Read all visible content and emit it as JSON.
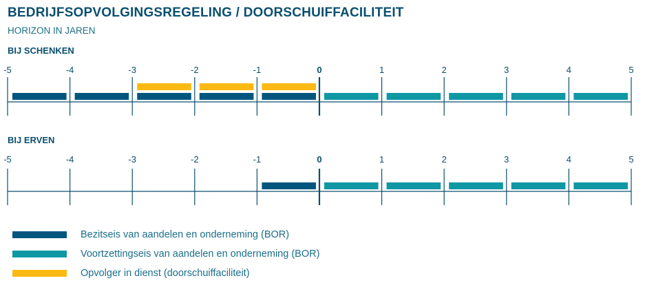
{
  "title": "BEDRIJFSOPVOLGINGSREGELING / DOORSCHUIFFACILITEIT",
  "subtitle": "HORIZON IN JAREN",
  "colors": {
    "bezit": "#02567e",
    "voortzetting": "#0f97a4",
    "opvolger": "#fdb913",
    "axis": "#0a4f6e"
  },
  "chart_data": [
    {
      "type": "bar",
      "title": "BIJ SCHENKEN",
      "xlim": [
        -5,
        5
      ],
      "ticks": [
        "-5",
        "-4",
        "-3",
        "-2",
        "-1",
        "0",
        "1",
        "2",
        "3",
        "4",
        "5"
      ],
      "series": [
        {
          "name": "Bezitseis van aandelen en onderneming (BOR)",
          "color_key": "bezit",
          "row": "lower",
          "years": [
            [
              -5,
              -4
            ],
            [
              -4,
              -3
            ],
            [
              -3,
              -2
            ],
            [
              -2,
              -1
            ],
            [
              -1,
              0
            ]
          ]
        },
        {
          "name": "Voortzettingseis van aandelen en onderneming (BOR)",
          "color_key": "voortzetting",
          "row": "lower",
          "years": [
            [
              0,
              1
            ],
            [
              1,
              2
            ],
            [
              2,
              3
            ],
            [
              3,
              4
            ],
            [
              4,
              5
            ]
          ]
        },
        {
          "name": "Opvolger in dienst (doorschuiffaciliteit)",
          "color_key": "opvolger",
          "row": "upper",
          "years": [
            [
              -3,
              -2
            ],
            [
              -2,
              -1
            ],
            [
              -1,
              0
            ]
          ]
        }
      ]
    },
    {
      "type": "bar",
      "title": "BIJ ERVEN",
      "xlim": [
        -5,
        5
      ],
      "ticks": [
        "-5",
        "-4",
        "-3",
        "-2",
        "-1",
        "0",
        "1",
        "2",
        "3",
        "4",
        "5"
      ],
      "series": [
        {
          "name": "Bezitseis van aandelen en onderneming (BOR)",
          "color_key": "bezit",
          "row": "lower",
          "years": [
            [
              -1,
              0
            ]
          ]
        },
        {
          "name": "Voortzettingseis van aandelen en onderneming (BOR)",
          "color_key": "voortzetting",
          "row": "lower",
          "years": [
            [
              0,
              1
            ],
            [
              1,
              2
            ],
            [
              2,
              3
            ],
            [
              3,
              4
            ],
            [
              4,
              5
            ]
          ]
        }
      ]
    }
  ],
  "legend": [
    {
      "label": "Bezitseis van aandelen en onderneming (BOR)",
      "color_key": "bezit"
    },
    {
      "label": "Voortzettingseis van aandelen en onderneming (BOR)",
      "color_key": "voortzetting"
    },
    {
      "label": "Opvolger in dienst (doorschuiffaciliteit)",
      "color_key": "opvolger"
    }
  ]
}
